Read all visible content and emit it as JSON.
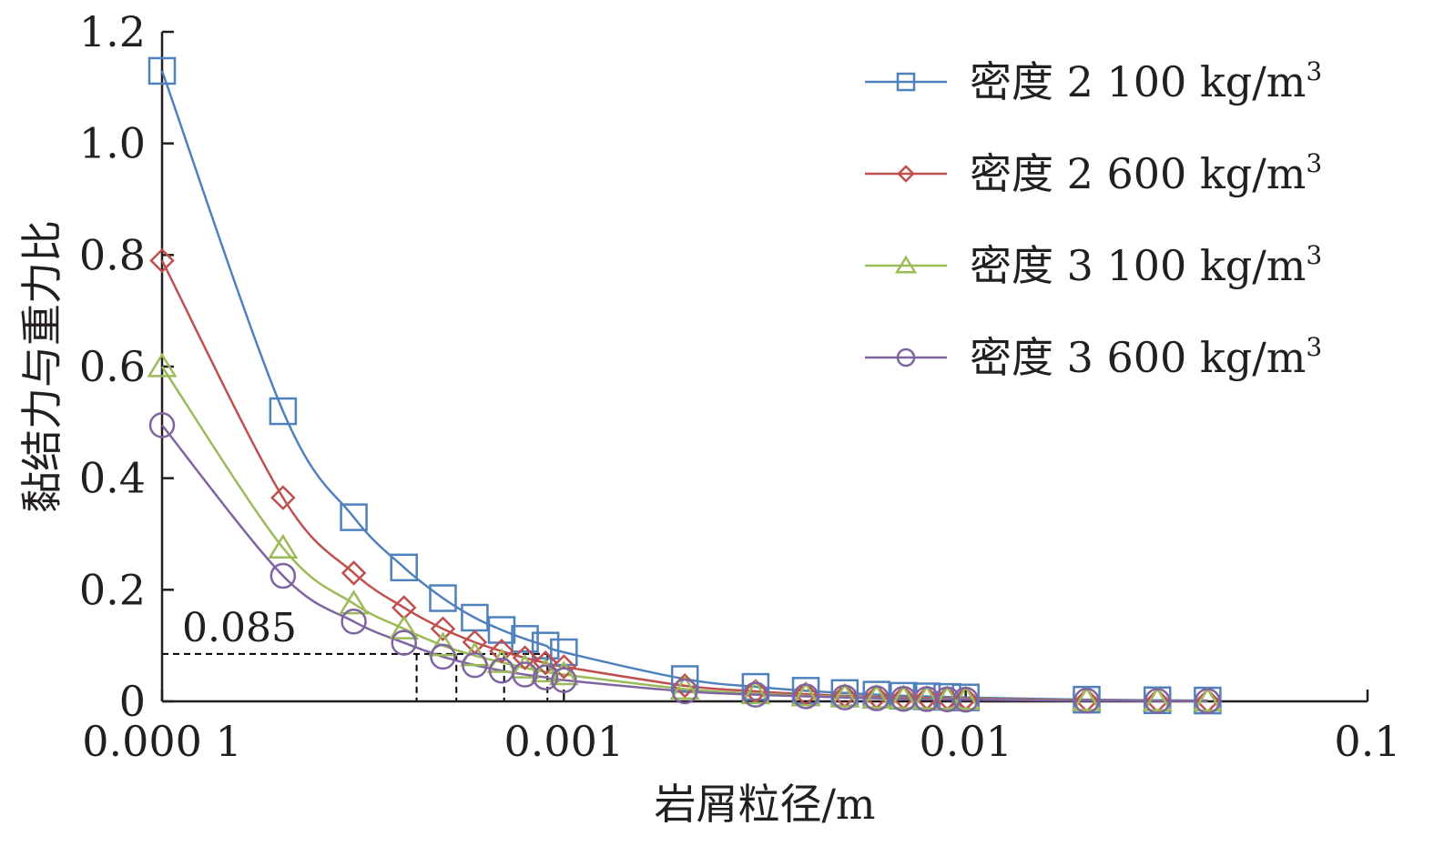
{
  "chart_data": {
    "type": "line",
    "title": "",
    "xlabel": "岩屑粒径/m",
    "ylabel": "黏结力与重力比",
    "x_scale": "log",
    "xlim": [
      0.0001,
      0.1
    ],
    "ylim": [
      0,
      1.2
    ],
    "x_ticks": [
      {
        "value": 0.0001,
        "label": "0.000 1"
      },
      {
        "value": 0.001,
        "label": "0.001"
      },
      {
        "value": 0.01,
        "label": "0.01"
      },
      {
        "value": 0.1,
        "label": "0.1"
      }
    ],
    "y_ticks": [
      {
        "value": 0,
        "label": "0"
      },
      {
        "value": 0.2,
        "label": "0.2"
      },
      {
        "value": 0.4,
        "label": "0.4"
      },
      {
        "value": 0.6,
        "label": "0.6"
      },
      {
        "value": 0.8,
        "label": "0.8"
      },
      {
        "value": 1.0,
        "label": "1.0"
      },
      {
        "value": 1.2,
        "label": "1.2"
      }
    ],
    "grid": false,
    "legend_position": "top-right",
    "x": [
      0.0001,
      0.0002,
      0.0003,
      0.0004,
      0.0005,
      0.0006,
      0.0007,
      0.0008,
      0.0009,
      0.001,
      0.002,
      0.003,
      0.004,
      0.005,
      0.006,
      0.007,
      0.008,
      0.009,
      0.01,
      0.02,
      0.03,
      0.04
    ],
    "series": [
      {
        "name": "密度 2 100 kg/m³",
        "legend_main": "密度 2 100 kg/m",
        "legend_sup": "3",
        "color": "#4f81bd",
        "marker": "square",
        "values": [
          1.13,
          0.52,
          0.33,
          0.24,
          0.185,
          0.15,
          0.128,
          0.112,
          0.1,
          0.088,
          0.04,
          0.026,
          0.019,
          0.015,
          0.012,
          0.01,
          0.009,
          0.008,
          0.007,
          0.003,
          0.002,
          0.0015
        ]
      },
      {
        "name": "密度 2 600 kg/m³",
        "legend_main": "密度 2 600 kg/m",
        "legend_sup": "3",
        "color": "#c0504d",
        "marker": "diamond",
        "values": [
          0.79,
          0.365,
          0.23,
          0.168,
          0.13,
          0.106,
          0.09,
          0.078,
          0.069,
          0.062,
          0.028,
          0.018,
          0.013,
          0.01,
          0.008,
          0.007,
          0.006,
          0.0055,
          0.005,
          0.002,
          0.0012,
          0.001
        ]
      },
      {
        "name": "密度 3 100 kg/m³",
        "legend_main": "密度 3 100 kg/m",
        "legend_sup": "3",
        "color": "#9bbb59",
        "marker": "triangle",
        "values": [
          0.6,
          0.275,
          0.175,
          0.13,
          0.1,
          0.082,
          0.07,
          0.06,
          0.053,
          0.048,
          0.022,
          0.014,
          0.01,
          0.008,
          0.006,
          0.005,
          0.0045,
          0.004,
          0.0036,
          0.0015,
          0.001,
          0.0007
        ]
      },
      {
        "name": "密度 3 600 kg/m³",
        "legend_main": "密度 3 600 kg/m",
        "legend_sup": "3",
        "color": "#8064a2",
        "marker": "circle",
        "values": [
          0.495,
          0.225,
          0.143,
          0.105,
          0.08,
          0.065,
          0.055,
          0.048,
          0.043,
          0.038,
          0.018,
          0.012,
          0.009,
          0.007,
          0.0055,
          0.0045,
          0.004,
          0.0035,
          0.003,
          0.0012,
          0.0008,
          0.0006
        ]
      }
    ],
    "annotations": [
      {
        "text": "0.085",
        "y": 0.085,
        "x_intersections": [
          0.00043,
          0.00054,
          0.00071,
          0.00091
        ]
      }
    ]
  }
}
